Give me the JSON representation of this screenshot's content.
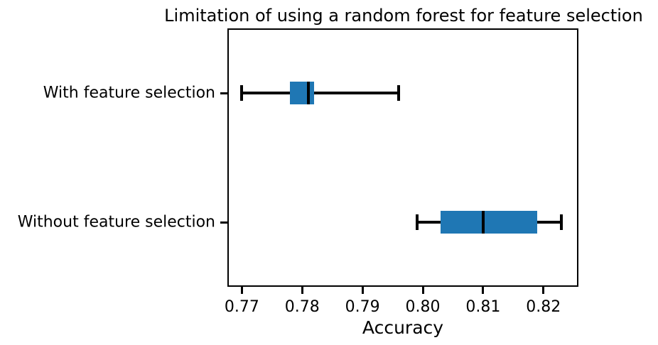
{
  "chart_data": {
    "type": "boxplot",
    "orientation": "horizontal",
    "title": "Limitation of using a random forest for feature selection",
    "xlabel": "Accuracy",
    "categories": [
      "With feature selection",
      "Without feature selection"
    ],
    "xlim": [
      0.7676,
      0.8258
    ],
    "ylim": [
      0.5,
      2.5
    ],
    "grid": false,
    "legend": false,
    "box_fill_color": "#1f77b4",
    "line_color": "#000000",
    "background_color": "#ffffff",
    "xticks": [
      {
        "label": "0.77",
        "value": 0.77
      },
      {
        "label": "0.78",
        "value": 0.78
      },
      {
        "label": "0.79",
        "value": 0.79
      },
      {
        "label": "0.80",
        "value": 0.8
      },
      {
        "label": "0.81",
        "value": 0.81
      },
      {
        "label": "0.82",
        "value": 0.82
      }
    ],
    "series": [
      {
        "key": "with-feature-selection",
        "label": "With feature selection",
        "position": 1,
        "whisker_low": 0.77,
        "q1": 0.778,
        "median": 0.781,
        "q3": 0.782,
        "whisker_high": 0.796
      },
      {
        "key": "without-feature-selection",
        "label": "Without feature selection",
        "position": 2,
        "whisker_low": 0.799,
        "q1": 0.803,
        "median": 0.81,
        "q3": 0.819,
        "whisker_high": 0.823
      }
    ]
  }
}
